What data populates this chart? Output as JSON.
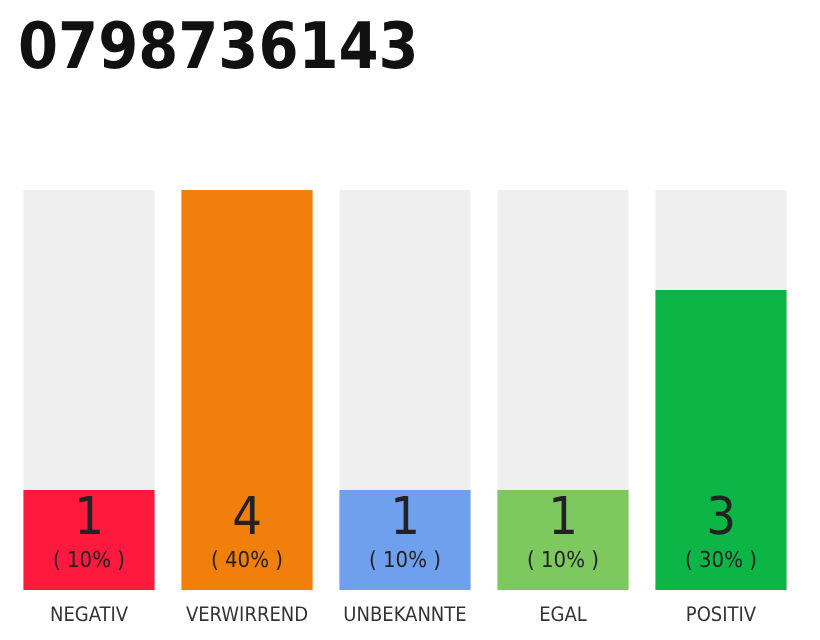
{
  "chart_data": {
    "type": "bar",
    "title": "0798736143",
    "categories": [
      "NEGATIV",
      "VERWIRREND",
      "UNBEKANNTE",
      "EGAL",
      "POSITIV"
    ],
    "values": [
      1,
      4,
      1,
      1,
      3
    ],
    "colors": [
      "#ff1a3d",
      "#f27f0c",
      "#6ea0ee",
      "#7ec95f",
      "#0db547"
    ],
    "value_labels": [
      "1\n( 10% )",
      "4\n( 40% )",
      "1\n( 10% )",
      "1\n( 10% )",
      "3\n( 30% )"
    ],
    "ylim": [
      0,
      4
    ],
    "tick_labels": "x"
  }
}
